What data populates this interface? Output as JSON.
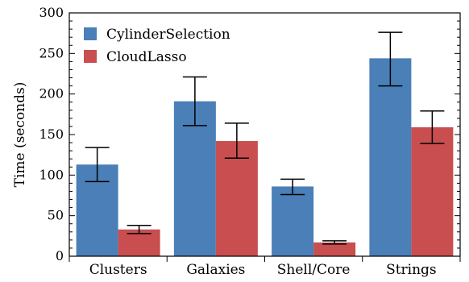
{
  "chart_data": {
    "type": "bar",
    "title": "",
    "xlabel": "",
    "ylabel": "Time (seconds)",
    "ylim": [
      0,
      300
    ],
    "yticks": [
      0,
      50,
      100,
      150,
      200,
      250,
      300
    ],
    "grid": false,
    "legend_position": "top-left",
    "categories": [
      "Clusters",
      "Galaxies",
      "Shell/Core",
      "Strings"
    ],
    "series": [
      {
        "name": "CylinderSelection",
        "color": "#4a7fb8",
        "values": [
          113,
          191,
          86,
          244
        ],
        "error_low": [
          92,
          161,
          76,
          210
        ],
        "error_high": [
          134,
          221,
          95,
          276
        ]
      },
      {
        "name": "CloudLasso",
        "color": "#c84e4f",
        "values": [
          33,
          142,
          17,
          159
        ],
        "error_low": [
          28,
          121,
          15,
          139
        ],
        "error_high": [
          38,
          164,
          19,
          179
        ]
      }
    ]
  }
}
